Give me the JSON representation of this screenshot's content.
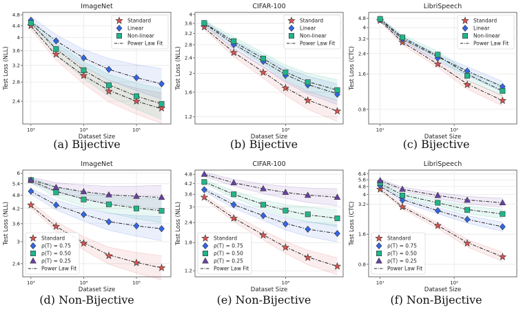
{
  "chart_data": [
    {
      "type": "line",
      "title": "ImageNet",
      "xlabel": "Dataset Size",
      "ylabel": "Test Loss (NLL)",
      "caption": "(a) Bijective",
      "xscale": "log",
      "yscale": "log",
      "xlim": [
        700,
        450000
      ],
      "ylim": [
        2.0,
        4.9
      ],
      "xticks": [
        {
          "v": 1000,
          "label": "10³"
        },
        {
          "v": 10000,
          "label": "10⁴"
        },
        {
          "v": 100000,
          "label": "10⁵"
        }
      ],
      "yticks": [
        2.4,
        2.8,
        3.2,
        3.6,
        4,
        4.4,
        4.8
      ],
      "legend": "top-right",
      "grid": true,
      "x": [
        1000,
        3000,
        10000,
        30000,
        100000,
        300000
      ],
      "series": [
        {
          "name": "Standard",
          "marker": "star",
          "color": "#d9534f",
          "line": "dashdot",
          "values": [
            4.4,
            3.5,
            2.95,
            2.6,
            2.4,
            2.27
          ],
          "fit": [
            4.38,
            3.47,
            2.95,
            2.62,
            2.4,
            2.26
          ]
        },
        {
          "name": "Linear",
          "marker": "diamond",
          "color": "#3366e6",
          "line": "dashdot",
          "values": [
            4.6,
            3.9,
            3.4,
            3.1,
            2.9,
            2.76
          ],
          "fit": [
            4.55,
            3.9,
            3.4,
            3.1,
            2.9,
            2.76
          ]
        },
        {
          "name": "Non-linear",
          "marker": "square",
          "color": "#22b58a",
          "line": "dashdot",
          "values": [
            4.5,
            3.65,
            3.08,
            2.73,
            2.5,
            2.35
          ],
          "fit": [
            4.5,
            3.65,
            3.08,
            2.74,
            2.5,
            2.35
          ]
        }
      ],
      "fit_name": "Power Law Fit"
    },
    {
      "type": "line",
      "title": "CIFAR-100",
      "xlabel": "Dataset Size",
      "ylabel": "Test Loss (NLL)",
      "caption": "(b) Bijective",
      "xscale": "log",
      "yscale": "log",
      "xlim": [
        600,
        60000
      ],
      "ylim": [
        1.1,
        4.1
      ],
      "xticks": [
        {
          "v": 10000,
          "label": "10⁴"
        }
      ],
      "yticks": [
        1.2,
        1.6,
        2,
        2.4,
        2.8,
        3.2,
        3.6,
        4
      ],
      "legend": "top-right",
      "grid": true,
      "x": [
        800,
        2000,
        5000,
        10000,
        20000,
        50000
      ],
      "series": [
        {
          "name": "Standard",
          "marker": "star",
          "color": "#d9534f",
          "line": "dashdot",
          "values": [
            3.45,
            2.55,
            2.02,
            1.68,
            1.45,
            1.28
          ],
          "fit": [
            3.42,
            2.56,
            2.03,
            1.69,
            1.46,
            1.28
          ]
        },
        {
          "name": "Linear",
          "marker": "diamond",
          "color": "#3366e6",
          "line": "dashdot",
          "values": [
            3.6,
            2.8,
            2.3,
            1.95,
            1.74,
            1.56
          ],
          "fit": [
            3.6,
            2.82,
            2.3,
            1.97,
            1.75,
            1.57
          ]
        },
        {
          "name": "Non-linear",
          "marker": "square",
          "color": "#22b58a",
          "line": "dashdot",
          "values": [
            3.62,
            2.92,
            2.38,
            2.02,
            1.8,
            1.64
          ],
          "fit": [
            3.62,
            2.9,
            2.38,
            2.03,
            1.81,
            1.64
          ]
        }
      ],
      "fit_name": "Power Law Fit"
    },
    {
      "type": "line",
      "title": "LibriSpeech",
      "xlabel": "Dataset Size",
      "ylabel": "Test Loss (CTC)",
      "caption": "(c) Bijective",
      "xscale": "log",
      "yscale": "log",
      "xlim": [
        7,
        700
      ],
      "ylim": [
        0.6,
        5.4
      ],
      "xticks": [
        {
          "v": 10,
          "label": "10¹"
        },
        {
          "v": 100,
          "label": "10²"
        }
      ],
      "yticks": [
        0.8,
        1.6,
        2.4,
        3.2,
        4,
        4.8
      ],
      "legend": "top-right",
      "grid": true,
      "x": [
        10,
        20,
        60,
        150,
        450
      ],
      "series": [
        {
          "name": "Standard",
          "marker": "star",
          "color": "#d9534f",
          "line": "dashdot",
          "values": [
            4.6,
            3.0,
            1.95,
            1.3,
            0.95
          ],
          "fit": [
            4.6,
            3.0,
            1.95,
            1.32,
            0.95
          ]
        },
        {
          "name": "Linear",
          "marker": "diamond",
          "color": "#3366e6",
          "line": "dashdot",
          "values": [
            4.7,
            3.2,
            2.2,
            1.7,
            1.25
          ],
          "fit": [
            4.7,
            3.2,
            2.25,
            1.7,
            1.25
          ]
        },
        {
          "name": "Non-linear",
          "marker": "square",
          "color": "#22b58a",
          "line": "dashdot",
          "values": [
            4.75,
            3.3,
            2.35,
            1.55,
            1.15
          ],
          "fit": [
            4.75,
            3.3,
            2.3,
            1.6,
            1.15
          ]
        }
      ],
      "fit_name": "Power Law Fit"
    },
    {
      "type": "line",
      "title": "ImageNet",
      "xlabel": "Dataset Size",
      "ylabel": "Test Loss (NLL)",
      "caption": "(d) Non-Bijective",
      "xscale": "log",
      "yscale": "log",
      "xlim": [
        700,
        450000
      ],
      "ylim": [
        2.1,
        6.2
      ],
      "xticks": [
        {
          "v": 1000,
          "label": "10³"
        },
        {
          "v": 10000,
          "label": "10⁴"
        },
        {
          "v": 100000,
          "label": "10⁵"
        }
      ],
      "yticks": [
        2.4,
        3,
        3.6,
        4.2,
        4.8,
        5.4,
        6
      ],
      "legend": "bottom-left",
      "grid": true,
      "x": [
        1000,
        3000,
        10000,
        30000,
        100000,
        300000
      ],
      "series": [
        {
          "name": "Standard",
          "marker": "star",
          "color": "#d9534f",
          "line": "dashdot",
          "values": [
            4.35,
            3.5,
            2.95,
            2.6,
            2.42,
            2.3
          ],
          "fit": [
            4.32,
            3.5,
            2.97,
            2.62,
            2.43,
            2.3
          ]
        },
        {
          "name": "ρ(T) = 0.75",
          "marker": "diamond",
          "color": "#3366e6",
          "line": "dashdot",
          "values": [
            5.0,
            4.35,
            3.95,
            3.67,
            3.52,
            3.42
          ],
          "fit": [
            5.0,
            4.35,
            3.95,
            3.68,
            3.52,
            3.42
          ]
        },
        {
          "name": "ρ(T) = 0.50",
          "marker": "square",
          "color": "#22b58a",
          "line": "dashdot",
          "values": [
            5.6,
            4.95,
            4.6,
            4.38,
            4.2,
            4.1
          ],
          "fit": [
            5.55,
            5.0,
            4.62,
            4.38,
            4.22,
            4.1
          ]
        },
        {
          "name": "ρ(T) = 0.25",
          "marker": "triangle",
          "color": "#6a3fa6",
          "line": "dashdot",
          "values": [
            5.6,
            5.2,
            4.98,
            4.82,
            4.75,
            4.7
          ],
          "fit": [
            5.62,
            5.22,
            4.98,
            4.83,
            4.75,
            4.7
          ]
        }
      ],
      "fit_name": "Power Law Fit"
    },
    {
      "type": "line",
      "title": "CIFAR-100",
      "xlabel": "Dataset Size",
      "ylabel": "Test Loss (NLL)",
      "caption": "(e) Non-Bijective",
      "xscale": "log",
      "yscale": "log",
      "xlim": [
        600,
        60000
      ],
      "ylim": [
        1.1,
        5.1
      ],
      "xticks": [
        {
          "v": 10000,
          "label": "10⁴"
        }
      ],
      "yticks": [
        1.2,
        1.8,
        2.4,
        3,
        3.6,
        4.2,
        4.8
      ],
      "legend": "bottom-left",
      "grid": true,
      "x": [
        800,
        2000,
        5000,
        10000,
        20000,
        50000
      ],
      "series": [
        {
          "name": "Standard",
          "marker": "star",
          "color": "#d9534f",
          "line": "dashdot",
          "values": [
            3.45,
            2.55,
            2.0,
            1.68,
            1.45,
            1.28
          ],
          "fit": [
            3.42,
            2.56,
            2.01,
            1.69,
            1.46,
            1.28
          ]
        },
        {
          "name": "ρ(T) = 0.75",
          "marker": "diamond",
          "color": "#3366e6",
          "line": "dashdot",
          "values": [
            3.85,
            3.1,
            2.65,
            2.35,
            2.18,
            2.05
          ],
          "fit": [
            3.85,
            3.1,
            2.65,
            2.37,
            2.18,
            2.05
          ]
        },
        {
          "name": "ρ(T) = 0.50",
          "marker": "square",
          "color": "#22b58a",
          "line": "dashdot",
          "values": [
            4.3,
            3.6,
            3.1,
            2.85,
            2.7,
            2.55
          ],
          "fit": [
            4.3,
            3.6,
            3.12,
            2.86,
            2.68,
            2.55
          ]
        },
        {
          "name": "ρ(T) = 0.25",
          "marker": "triangle",
          "color": "#6a3fa6",
          "line": "dashdot",
          "values": [
            4.8,
            4.25,
            3.9,
            3.7,
            3.55,
            3.45
          ],
          "fit": [
            4.8,
            4.25,
            3.9,
            3.7,
            3.56,
            3.45
          ]
        }
      ],
      "fit_name": "Power Law Fit"
    },
    {
      "type": "line",
      "title": "LibriSpeech",
      "xlabel": "Dataset Size",
      "ylabel": "Test Loss (CTC)",
      "caption": "(f) Non-Bijective",
      "xscale": "log",
      "yscale": "log",
      "xlim": [
        7,
        700
      ],
      "ylim": [
        0.6,
        7.0
      ],
      "xticks": [
        {
          "v": 10,
          "label": "10¹"
        },
        {
          "v": 100,
          "label": "10²"
        }
      ],
      "yticks": [
        0.8,
        1.6,
        3.2,
        4,
        4.8,
        5.6,
        6.4
      ],
      "legend": "bottom-left",
      "grid": true,
      "x": [
        10,
        20,
        60,
        150,
        450
      ],
      "series": [
        {
          "name": "Standard",
          "marker": "star",
          "color": "#d9534f",
          "line": "dashdot",
          "values": [
            4.5,
            3.0,
            1.95,
            1.3,
            0.95
          ],
          "fit": [
            4.5,
            3.0,
            1.96,
            1.32,
            0.95
          ]
        },
        {
          "name": "ρ(T) = 0.75",
          "marker": "diamond",
          "color": "#3366e6",
          "line": "dashdot",
          "values": [
            4.9,
            3.5,
            2.75,
            2.25,
            1.9
          ],
          "fit": [
            4.85,
            3.55,
            2.75,
            2.25,
            1.9
          ]
        },
        {
          "name": "ρ(T) = 0.50",
          "marker": "square",
          "color": "#22b58a",
          "line": "dashdot",
          "values": [
            5.2,
            3.9,
            3.3,
            2.8,
            2.55
          ],
          "fit": [
            5.15,
            3.95,
            3.3,
            2.82,
            2.55
          ]
        },
        {
          "name": "ρ(T) = 0.25",
          "marker": "triangle",
          "color": "#6a3fa6",
          "line": "dashdot",
          "values": [
            5.5,
            4.5,
            3.9,
            3.5,
            3.3
          ],
          "fit": [
            5.5,
            4.5,
            3.9,
            3.52,
            3.3
          ]
        }
      ],
      "fit_name": "Power Law Fit"
    }
  ]
}
